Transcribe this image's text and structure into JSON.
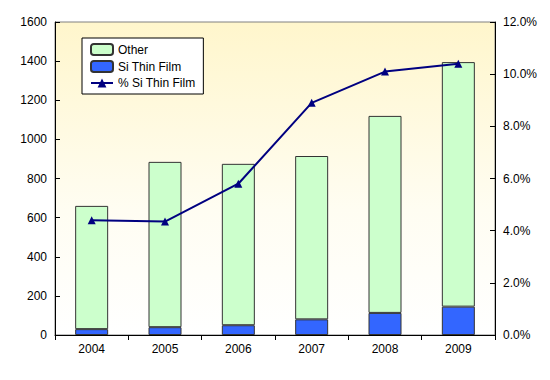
{
  "chart_data": {
    "type": "bar",
    "categories": [
      "2004",
      "2005",
      "2006",
      "2007",
      "2008",
      "2009"
    ],
    "series": [
      {
        "name": "Other",
        "type": "bar",
        "color": "#ccffcc",
        "values": [
          630,
          845,
          825,
          835,
          1007,
          1250
        ]
      },
      {
        "name": "Si Thin Film",
        "type": "bar",
        "color": "#3366ff",
        "values": [
          30,
          40,
          50,
          80,
          113,
          145
        ]
      },
      {
        "name": "% Si Thin Film",
        "type": "line",
        "axis": "y2",
        "color": "#000080",
        "marker": "triangle",
        "values": [
          4.4,
          4.35,
          5.8,
          8.9,
          10.1,
          10.4
        ]
      }
    ],
    "ylim": [
      0,
      1600
    ],
    "yticks": [
      0,
      200,
      400,
      600,
      800,
      1000,
      1200,
      1400,
      1600
    ],
    "y2lim": [
      0,
      12
    ],
    "y2ticks": [
      {
        "value": 0,
        "label": "0.0%"
      },
      {
        "value": 2,
        "label": "2.0%"
      },
      {
        "value": 4,
        "label": "4.0%"
      },
      {
        "value": 6,
        "label": "6.0%"
      },
      {
        "value": 8,
        "label": "8.0%"
      },
      {
        "value": 10,
        "label": "10.0%"
      },
      {
        "value": 12,
        "label": "12.0%"
      }
    ],
    "stacked": true,
    "grid": false,
    "legend": "top-left"
  }
}
